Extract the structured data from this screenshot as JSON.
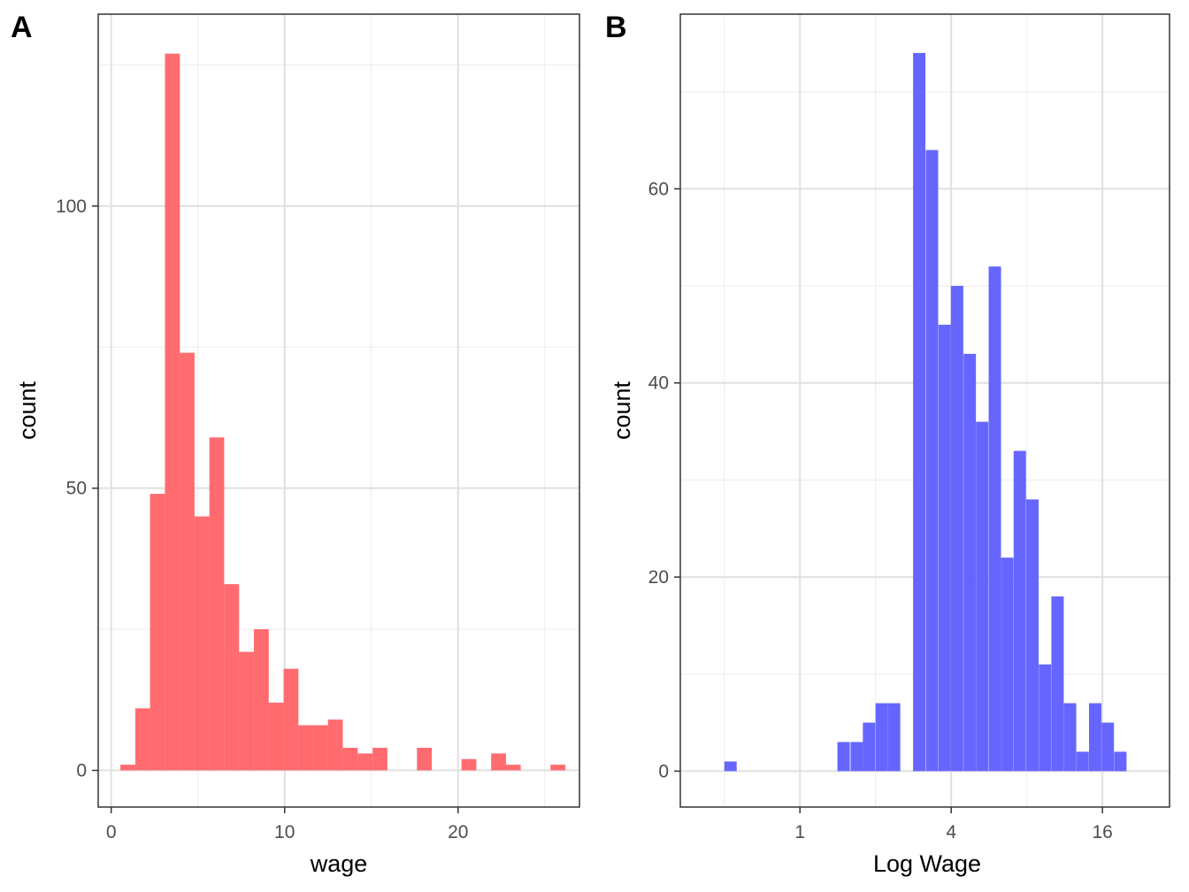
{
  "panels": [
    {
      "tag": "A"
    },
    {
      "tag": "B"
    }
  ],
  "chart_data": [
    {
      "type": "histogram",
      "panel": "A",
      "xlabel": "wage",
      "ylabel": "count",
      "x_scale": "linear",
      "xlim": [
        -0.75,
        27
      ],
      "ylim": [
        -6.5,
        134
      ],
      "x_ticks": [
        0,
        10,
        20
      ],
      "y_ticks": [
        0,
        50,
        100
      ],
      "grid": true,
      "fill_color": "#ff6b6f",
      "bin_width": 0.855,
      "bins": [
        {
          "x0": 0.53,
          "count": 1
        },
        {
          "x0": 1.39,
          "count": 11
        },
        {
          "x0": 2.24,
          "count": 49
        },
        {
          "x0": 3.1,
          "count": 127
        },
        {
          "x0": 3.95,
          "count": 74
        },
        {
          "x0": 4.81,
          "count": 45
        },
        {
          "x0": 5.66,
          "count": 59
        },
        {
          "x0": 6.52,
          "count": 33
        },
        {
          "x0": 7.37,
          "count": 21
        },
        {
          "x0": 8.23,
          "count": 25
        },
        {
          "x0": 9.08,
          "count": 12
        },
        {
          "x0": 9.94,
          "count": 18
        },
        {
          "x0": 10.79,
          "count": 8
        },
        {
          "x0": 11.65,
          "count": 8
        },
        {
          "x0": 12.5,
          "count": 9
        },
        {
          "x0": 13.36,
          "count": 4
        },
        {
          "x0": 14.21,
          "count": 3
        },
        {
          "x0": 15.07,
          "count": 4
        },
        {
          "x0": 15.92,
          "count": 0
        },
        {
          "x0": 16.78,
          "count": 0
        },
        {
          "x0": 17.63,
          "count": 4
        },
        {
          "x0": 18.49,
          "count": 0
        },
        {
          "x0": 19.34,
          "count": 0
        },
        {
          "x0": 20.2,
          "count": 2
        },
        {
          "x0": 21.05,
          "count": 0
        },
        {
          "x0": 21.91,
          "count": 3
        },
        {
          "x0": 22.76,
          "count": 1
        },
        {
          "x0": 23.62,
          "count": 0
        },
        {
          "x0": 24.47,
          "count": 0
        },
        {
          "x0": 25.33,
          "count": 1
        }
      ]
    },
    {
      "type": "histogram",
      "panel": "B",
      "xlabel": "Log Wage",
      "ylabel": "count",
      "x_scale": "log2",
      "xlim": [
        0.334,
        29.6
      ],
      "ylim": [
        -3.7,
        78
      ],
      "x_ticks": [
        1,
        4,
        16
      ],
      "y_ticks": [
        0,
        20,
        40,
        60
      ],
      "grid": true,
      "fill_color": "#6666ff",
      "bin_log2_width": 0.1635,
      "bins": [
        {
          "x0": 0.5,
          "count": 1
        },
        {
          "x0": 0.56,
          "count": 0
        },
        {
          "x0": 0.63,
          "count": 0
        },
        {
          "x0": 0.71,
          "count": 0
        },
        {
          "x0": 0.8,
          "count": 0
        },
        {
          "x0": 0.89,
          "count": 0
        },
        {
          "x0": 1.0,
          "count": 0
        },
        {
          "x0": 1.12,
          "count": 0
        },
        {
          "x0": 1.26,
          "count": 0
        },
        {
          "x0": 1.41,
          "count": 3
        },
        {
          "x0": 1.59,
          "count": 3
        },
        {
          "x0": 1.78,
          "count": 5
        },
        {
          "x0": 2.0,
          "count": 7
        },
        {
          "x0": 2.24,
          "count": 7
        },
        {
          "x0": 2.52,
          "count": 0
        },
        {
          "x0": 2.82,
          "count": 74
        },
        {
          "x0": 3.17,
          "count": 64
        },
        {
          "x0": 3.56,
          "count": 46
        },
        {
          "x0": 3.99,
          "count": 50
        },
        {
          "x0": 4.48,
          "count": 43
        },
        {
          "x0": 5.02,
          "count": 36
        },
        {
          "x0": 5.64,
          "count": 52
        },
        {
          "x0": 6.32,
          "count": 22
        },
        {
          "x0": 7.09,
          "count": 33
        },
        {
          "x0": 7.96,
          "count": 28
        },
        {
          "x0": 8.93,
          "count": 11
        },
        {
          "x0": 10.02,
          "count": 18
        },
        {
          "x0": 11.24,
          "count": 7
        },
        {
          "x0": 12.61,
          "count": 2
        },
        {
          "x0": 14.15,
          "count": 7
        },
        {
          "x0": 15.88,
          "count": 5
        },
        {
          "x0": 17.82,
          "count": 2
        }
      ]
    }
  ]
}
